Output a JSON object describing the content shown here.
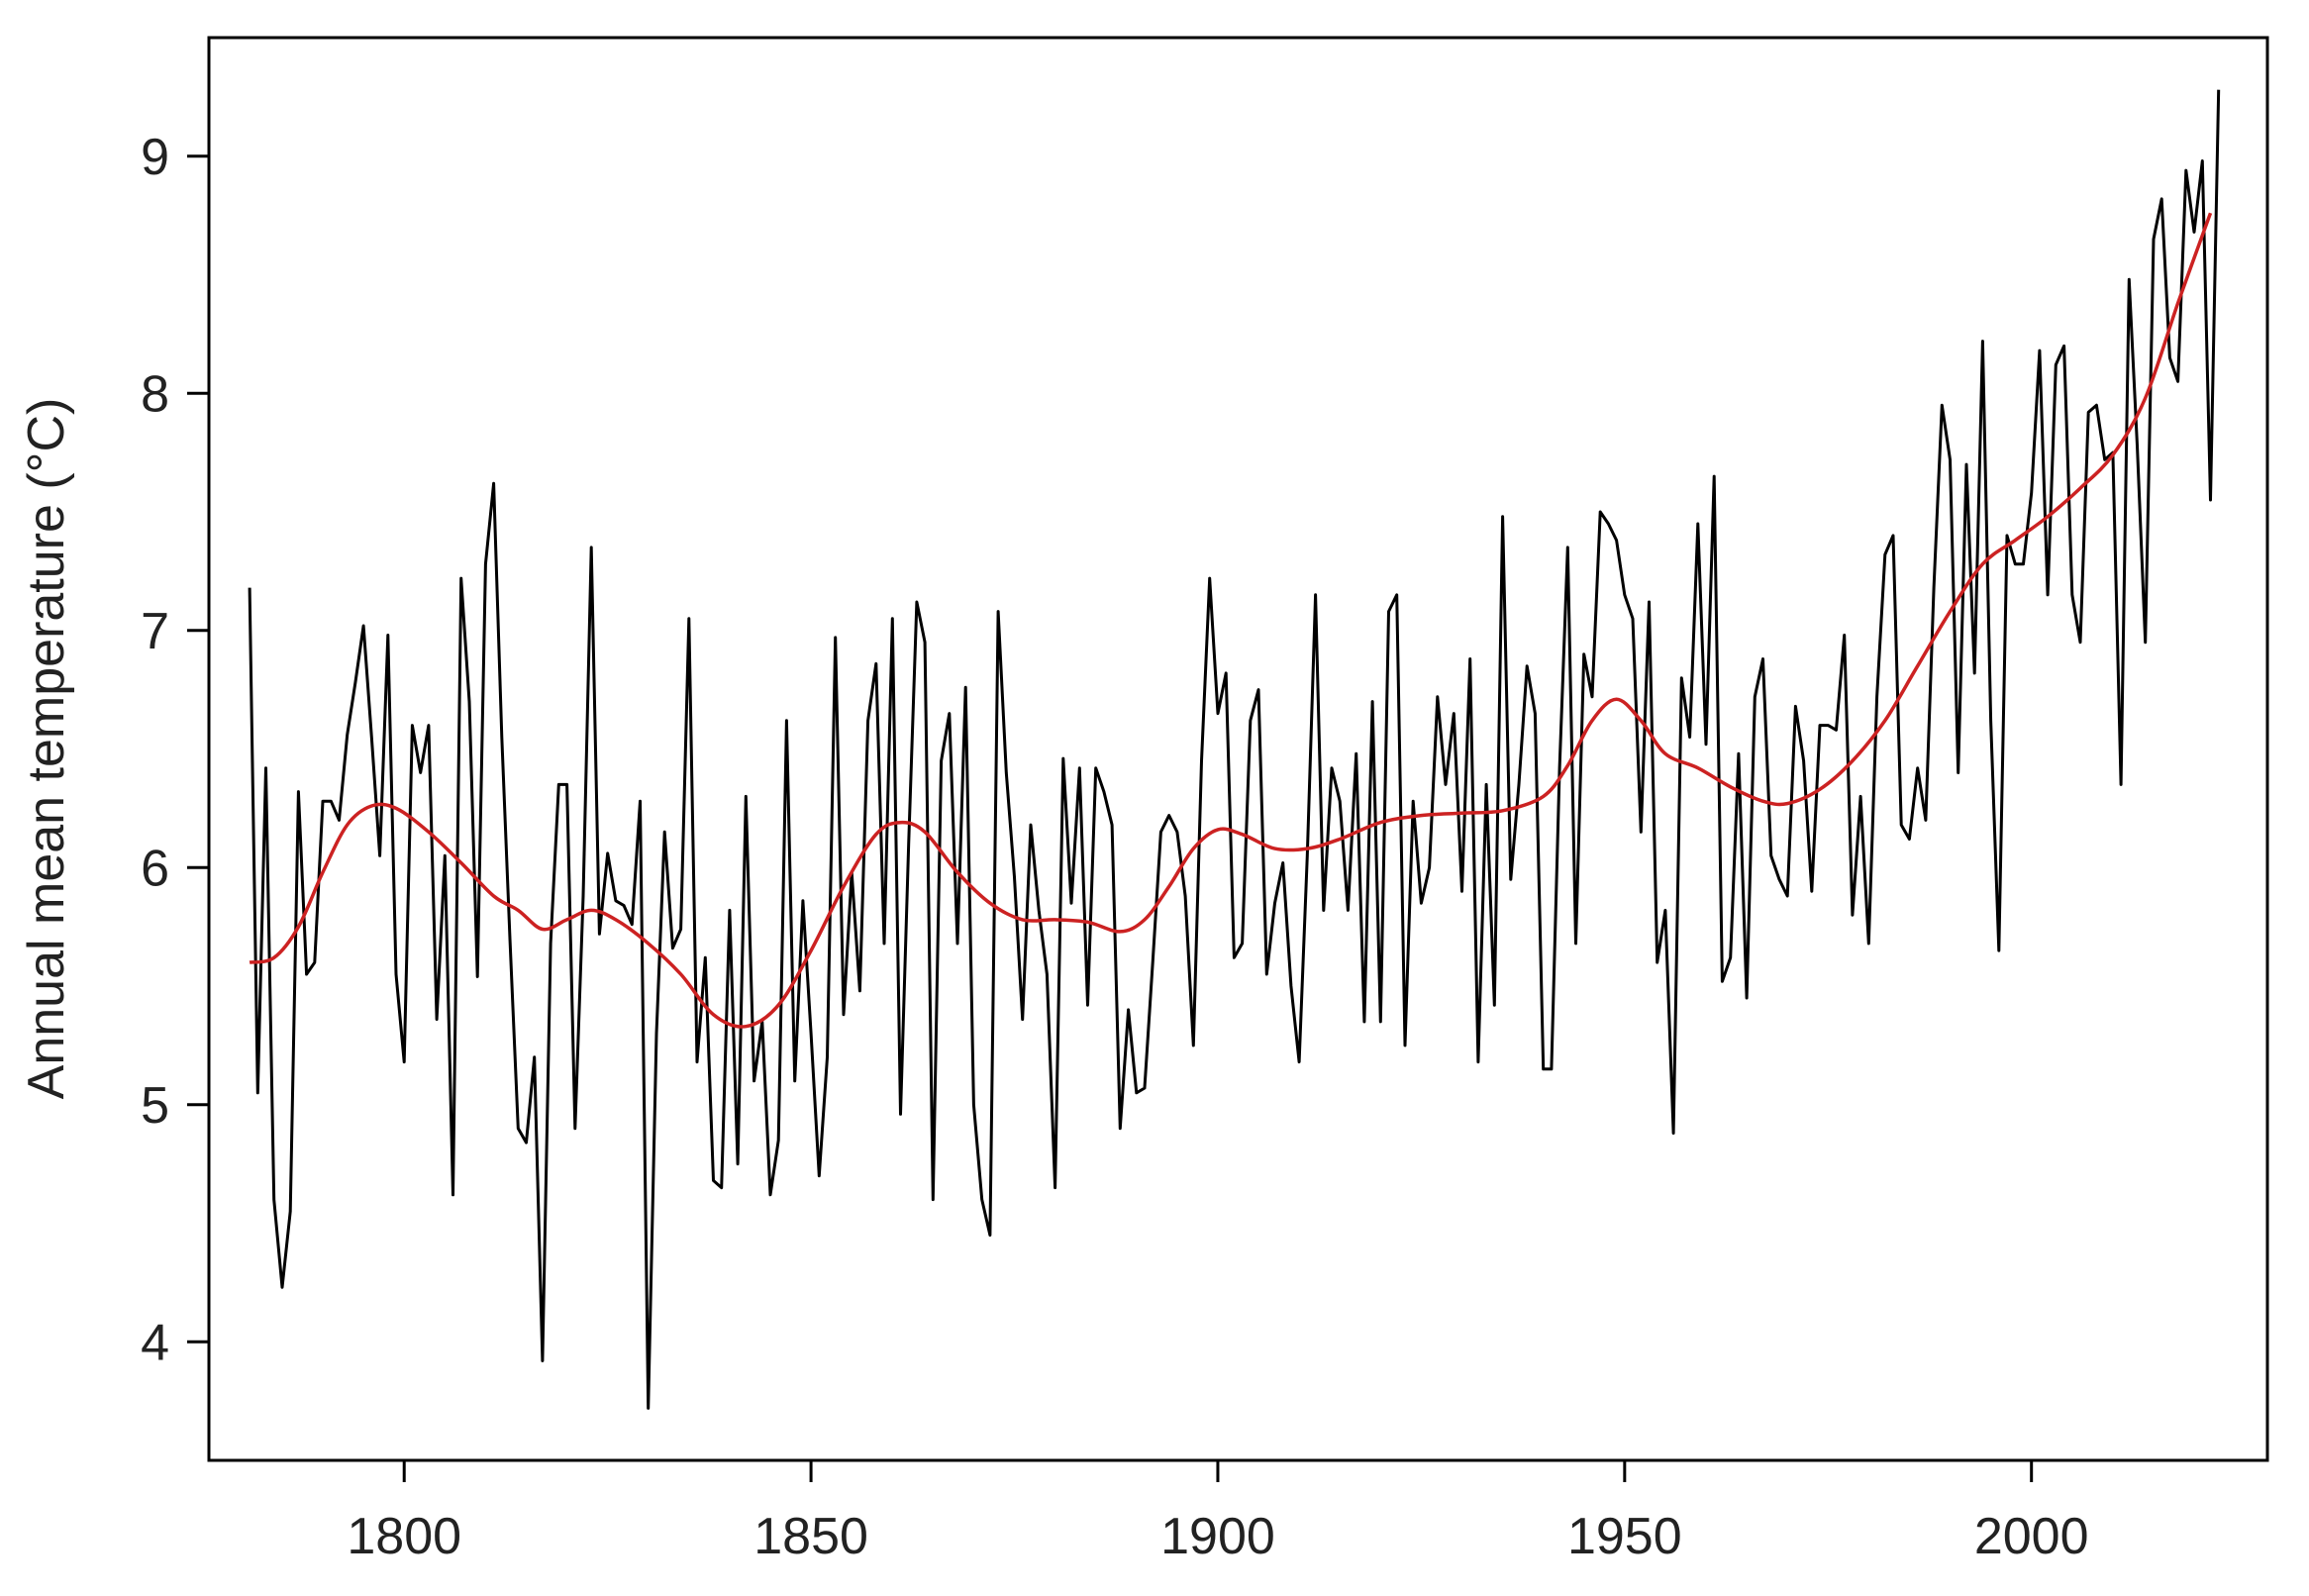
{
  "chart_data": {
    "type": "line",
    "title": "",
    "xlabel": "",
    "ylabel": "Annual mean temperature (°C)",
    "xlim": [
      1776,
      2029
    ],
    "ylim": [
      3.5,
      9.5
    ],
    "x_ticks": [
      1800,
      1850,
      1900,
      1950,
      2000
    ],
    "y_ticks": [
      4,
      5,
      6,
      7,
      8,
      9
    ],
    "grid": false,
    "legend": "none",
    "series": [
      {
        "kind": "annual",
        "color": "#000000",
        "x_start": 1781,
        "x_end": 2022,
        "values": [
          7.18,
          5.05,
          6.42,
          4.6,
          4.23,
          4.55,
          6.32,
          5.55,
          5.6,
          6.28,
          6.28,
          6.2,
          6.56,
          6.78,
          7.02,
          6.55,
          6.05,
          6.98,
          5.55,
          5.18,
          6.6,
          6.4,
          6.6,
          5.36,
          6.05,
          4.62,
          7.22,
          6.7,
          5.54,
          7.28,
          7.62,
          6.55,
          5.7,
          4.9,
          4.84,
          5.2,
          3.92,
          5.68,
          6.35,
          6.35,
          4.9,
          5.88,
          7.35,
          5.72,
          6.06,
          5.86,
          5.84,
          5.76,
          6.28,
          3.72,
          5.3,
          6.15,
          5.66,
          5.74,
          7.05,
          5.18,
          5.62,
          4.68,
          4.65,
          5.82,
          4.75,
          6.3,
          5.1,
          5.35,
          4.62,
          4.85,
          6.62,
          5.1,
          5.86,
          5.3,
          4.7,
          5.2,
          6.97,
          5.38,
          5.98,
          5.48,
          6.62,
          6.86,
          5.68,
          7.05,
          4.96,
          6.1,
          7.12,
          6.95,
          4.6,
          6.45,
          6.65,
          5.68,
          6.76,
          5.0,
          4.6,
          4.45,
          7.08,
          6.4,
          5.96,
          5.36,
          6.18,
          5.82,
          5.55,
          4.65,
          6.46,
          5.85,
          6.42,
          5.42,
          6.42,
          6.32,
          6.18,
          4.9,
          5.4,
          5.05,
          5.07,
          5.6,
          6.15,
          6.22,
          6.15,
          5.88,
          5.25,
          6.45,
          7.22,
          6.65,
          6.82,
          5.62,
          5.68,
          6.62,
          6.75,
          5.55,
          5.85,
          6.02,
          5.5,
          5.18,
          6.05,
          7.15,
          5.82,
          6.42,
          6.28,
          5.82,
          6.48,
          5.35,
          6.7,
          5.35,
          7.08,
          7.15,
          5.25,
          6.28,
          5.85,
          6.0,
          6.72,
          6.35,
          6.65,
          5.9,
          6.88,
          5.18,
          6.35,
          5.42,
          7.48,
          5.95,
          6.35,
          6.85,
          6.65,
          5.15,
          5.15,
          6.42,
          7.35,
          5.68,
          6.9,
          6.72,
          7.5,
          7.45,
          7.38,
          7.15,
          7.05,
          6.15,
          7.12,
          5.6,
          5.82,
          4.88,
          6.8,
          6.55,
          7.45,
          6.52,
          7.65,
          5.52,
          5.62,
          6.48,
          5.45,
          6.72,
          6.88,
          6.05,
          5.95,
          5.88,
          6.68,
          6.45,
          5.9,
          6.6,
          6.6,
          6.58,
          6.98,
          5.8,
          6.3,
          5.68,
          6.72,
          7.32,
          7.4,
          6.18,
          6.12,
          6.42,
          6.2,
          7.18,
          7.95,
          7.72,
          6.4,
          7.7,
          6.82,
          8.22,
          6.62,
          5.65,
          7.4,
          7.28,
          7.28,
          7.58,
          8.18,
          7.15,
          8.12,
          8.2,
          7.15,
          6.95,
          7.92,
          7.95,
          7.72,
          7.75,
          6.35,
          8.48,
          7.78,
          6.95,
          8.65,
          8.82,
          8.15,
          8.05,
          8.94,
          8.68,
          8.98,
          7.55,
          9.28
        ]
      },
      {
        "kind": "smoothed",
        "color": "#cc2222",
        "points": [
          [
            1781,
            5.6
          ],
          [
            1784,
            5.62
          ],
          [
            1787,
            5.75
          ],
          [
            1790,
            5.98
          ],
          [
            1793,
            6.18
          ],
          [
            1796,
            6.26
          ],
          [
            1799,
            6.25
          ],
          [
            1803,
            6.15
          ],
          [
            1807,
            6.02
          ],
          [
            1811,
            5.88
          ],
          [
            1814,
            5.82
          ],
          [
            1817,
            5.74
          ],
          [
            1820,
            5.78
          ],
          [
            1823,
            5.82
          ],
          [
            1826,
            5.78
          ],
          [
            1830,
            5.68
          ],
          [
            1834,
            5.55
          ],
          [
            1838,
            5.38
          ],
          [
            1842,
            5.33
          ],
          [
            1846,
            5.42
          ],
          [
            1850,
            5.65
          ],
          [
            1854,
            5.92
          ],
          [
            1858,
            6.14
          ],
          [
            1861,
            6.19
          ],
          [
            1864,
            6.15
          ],
          [
            1868,
            5.98
          ],
          [
            1872,
            5.85
          ],
          [
            1876,
            5.78
          ],
          [
            1880,
            5.78
          ],
          [
            1884,
            5.77
          ],
          [
            1888,
            5.73
          ],
          [
            1891,
            5.78
          ],
          [
            1894,
            5.92
          ],
          [
            1897,
            6.08
          ],
          [
            1900,
            6.16
          ],
          [
            1903,
            6.14
          ],
          [
            1907,
            6.08
          ],
          [
            1911,
            6.08
          ],
          [
            1915,
            6.12
          ],
          [
            1920,
            6.19
          ],
          [
            1925,
            6.22
          ],
          [
            1930,
            6.23
          ],
          [
            1935,
            6.24
          ],
          [
            1940,
            6.3
          ],
          [
            1943,
            6.43
          ],
          [
            1946,
            6.62
          ],
          [
            1949,
            6.71
          ],
          [
            1952,
            6.62
          ],
          [
            1955,
            6.48
          ],
          [
            1959,
            6.42
          ],
          [
            1963,
            6.34
          ],
          [
            1967,
            6.28
          ],
          [
            1970,
            6.27
          ],
          [
            1974,
            6.33
          ],
          [
            1978,
            6.45
          ],
          [
            1982,
            6.62
          ],
          [
            1986,
            6.85
          ],
          [
            1990,
            7.08
          ],
          [
            1994,
            7.28
          ],
          [
            1998,
            7.38
          ],
          [
            2002,
            7.48
          ],
          [
            2006,
            7.6
          ],
          [
            2010,
            7.74
          ],
          [
            2014,
            7.98
          ],
          [
            2018,
            8.38
          ],
          [
            2022,
            8.76
          ]
        ]
      }
    ]
  }
}
